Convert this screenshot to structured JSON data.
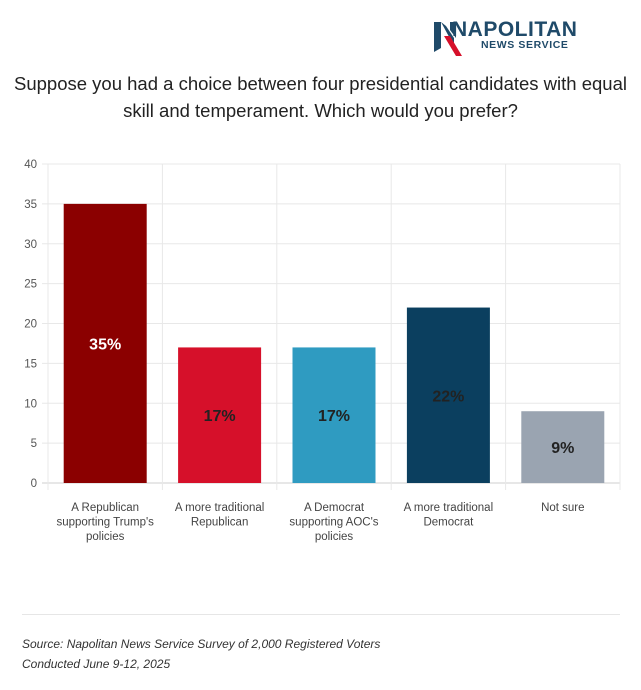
{
  "logo": {
    "name": "NAPOLITAN",
    "subtitle": "NEWS SERVICE",
    "icon": "napolitan-n-logo-icon",
    "colors": {
      "navy": "#1f4a69",
      "red": "#d6102a"
    }
  },
  "title_lines": [
    "Suppose you had a choice between four presidential candidates with equal",
    "skill and temperament. Which would you prefer?"
  ],
  "chart_data": {
    "type": "bar",
    "title": "Suppose you had a choice between four presidential candidates with equal skill and temperament. Which would you prefer?",
    "categories": [
      [
        "A Republican",
        "supporting Trump's",
        "policies"
      ],
      [
        "A more traditional",
        "Republican"
      ],
      [
        "A Democrat",
        "supporting AOC's",
        "policies"
      ],
      [
        "A more traditional",
        "Democrat"
      ],
      [
        "Not sure"
      ]
    ],
    "values": [
      35,
      17,
      17,
      22,
      9
    ],
    "data_labels": [
      "35%",
      "17%",
      "17%",
      "22%",
      "9%"
    ],
    "colors": [
      "#8b0000",
      "#d6102a",
      "#2f9bc1",
      "#0b3f5f",
      "#9aa4b1"
    ],
    "label_colors": [
      "#ffffff",
      "#222222",
      "#222222",
      "#222222",
      "#222222"
    ],
    "ylim": [
      0,
      40
    ],
    "yticks": [
      0,
      5,
      10,
      15,
      20,
      25,
      30,
      35,
      40
    ],
    "grid": true
  },
  "source": {
    "line1": "Source: Napolitan News Service Survey of 2,000 Registered Voters",
    "line2": "Conducted June 9-12, 2025"
  }
}
